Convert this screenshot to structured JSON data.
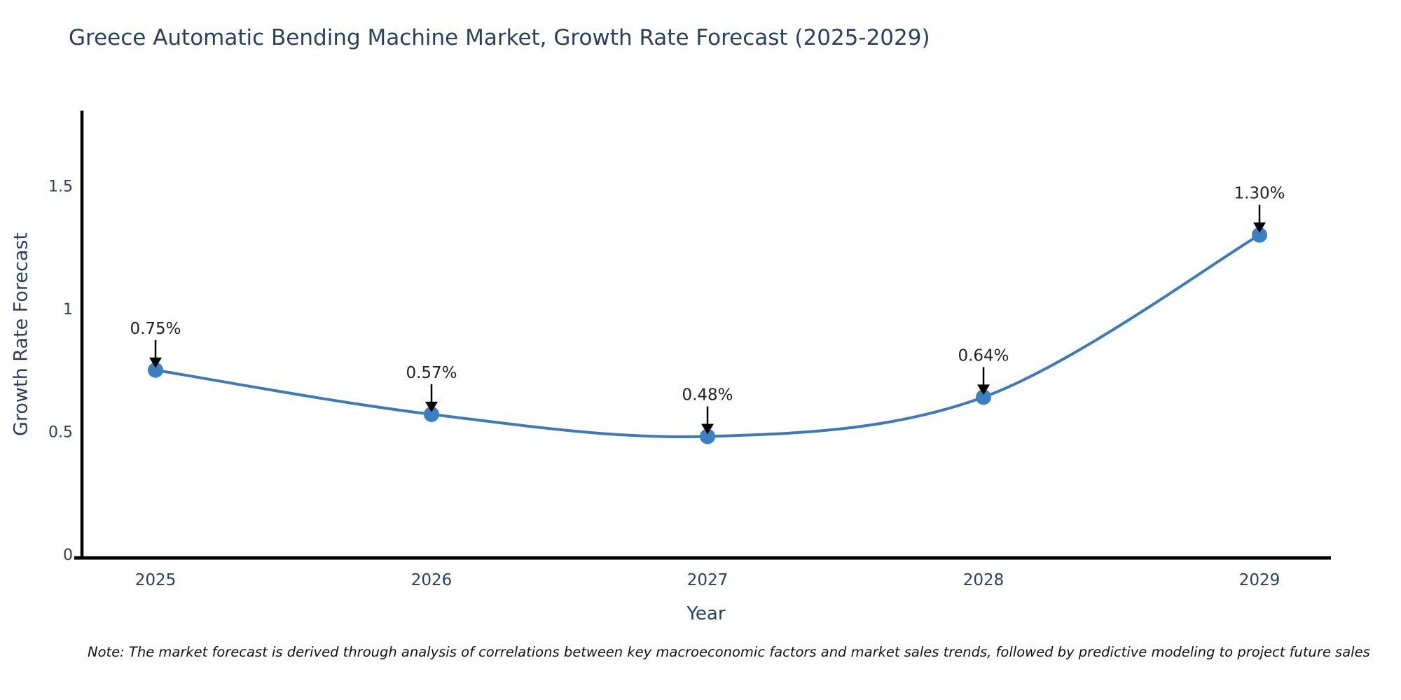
{
  "title": "Greece Automatic Bending Machine Market, Growth Rate Forecast (2025-2029)",
  "note": "Note: The market forecast is derived through analysis of correlations between key macroeconomic factors and market sales trends, followed by predictive modeling to project future sales",
  "chart_data": {
    "type": "line",
    "title": "Greece Automatic Bending Machine Market, Growth Rate Forecast (2025-2029)",
    "xlabel": "Year",
    "ylabel": "Growth Rate Forecast",
    "categories": [
      "2025",
      "2026",
      "2027",
      "2028",
      "2029"
    ],
    "series": [
      {
        "name": "Growth Rate Forecast",
        "values": [
          0.75,
          0.57,
          0.48,
          0.64,
          1.3
        ]
      }
    ],
    "point_labels": [
      "0.75%",
      "0.57%",
      "0.48%",
      "0.64%",
      "1.30%"
    ],
    "yticks": [
      "0",
      "0.5",
      "1",
      "1.5"
    ],
    "ytick_values": [
      0,
      0.5,
      1,
      1.5
    ],
    "ylim": [
      0,
      1.8
    ],
    "line_shape": "spline",
    "grid": false,
    "legend": "none",
    "colors": {
      "line": "#3c79b8",
      "marker": "#3c80c4",
      "axis": "#000000",
      "tick_text": "#2a3f5f",
      "annotation_text": "#222222",
      "arrow": "#000000",
      "title_text": "#2a3f5f",
      "background": "#ffffff"
    }
  }
}
